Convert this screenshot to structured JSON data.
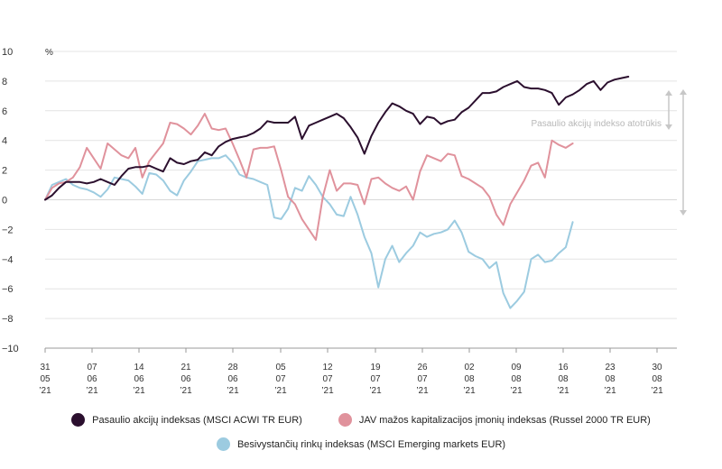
{
  "chart_data": {
    "type": "line",
    "ylabel": "%",
    "ylim": [
      -10,
      10
    ],
    "yticks": [
      "10",
      "8",
      "6",
      "4",
      "2",
      "0",
      "−2",
      "−4",
      "−6",
      "−8",
      "−10"
    ],
    "xticks": [
      {
        "day": "31",
        "month": "05",
        "year": "’21"
      },
      {
        "day": "07",
        "month": "06",
        "year": "’21"
      },
      {
        "day": "14",
        "month": "06",
        "year": "’21"
      },
      {
        "day": "21",
        "month": "06",
        "year": "’21"
      },
      {
        "day": "28",
        "month": "06",
        "year": "’21"
      },
      {
        "day": "05",
        "month": "07",
        "year": "’21"
      },
      {
        "day": "12",
        "month": "07",
        "year": "’21"
      },
      {
        "day": "19",
        "month": "07",
        "year": "’21"
      },
      {
        "day": "26",
        "month": "07",
        "year": "’21"
      },
      {
        "day": "02",
        "month": "08",
        "year": "’21"
      },
      {
        "day": "09",
        "month": "08",
        "year": "’21"
      },
      {
        "day": "16",
        "month": "08",
        "year": "’21"
      },
      {
        "day": "23",
        "month": "08",
        "year": "’21"
      },
      {
        "day": "30",
        "month": "08",
        "year": "’21"
      }
    ],
    "grid": true,
    "legend": "bottom",
    "annotation": "Pasaulio akcijų indekso atotrūkis",
    "series": [
      {
        "name": "Pasaulio akcijų indeksas (MSCI ACWI TR EUR)",
        "color": "#2b0f2e",
        "points": [
          [
            0,
            0
          ],
          [
            1,
            0.3
          ],
          [
            2,
            0.8
          ],
          [
            3,
            1.2
          ],
          [
            4,
            1.2
          ],
          [
            5,
            1.2
          ],
          [
            6,
            1.1
          ],
          [
            7,
            1.2
          ],
          [
            8,
            1.4
          ],
          [
            9,
            1.2
          ],
          [
            10,
            1.0
          ],
          [
            11,
            1.6
          ],
          [
            12,
            2.1
          ],
          [
            13,
            2.2
          ],
          [
            14,
            2.2
          ],
          [
            15,
            2.3
          ],
          [
            16,
            2.1
          ],
          [
            17,
            1.9
          ],
          [
            18,
            2.8
          ],
          [
            19,
            2.5
          ],
          [
            20,
            2.4
          ],
          [
            21,
            2.6
          ],
          [
            22,
            2.7
          ],
          [
            23,
            3.2
          ],
          [
            24,
            3.0
          ],
          [
            25,
            3.6
          ],
          [
            26,
            3.9
          ],
          [
            27,
            4.1
          ],
          [
            28,
            4.2
          ],
          [
            29,
            4.3
          ],
          [
            30,
            4.5
          ],
          [
            31,
            4.8
          ],
          [
            32,
            5.3
          ],
          [
            33,
            5.2
          ],
          [
            34,
            5.2
          ],
          [
            35,
            5.2
          ],
          [
            36,
            5.6
          ],
          [
            37,
            4.1
          ],
          [
            38,
            5.0
          ],
          [
            39,
            5.2
          ],
          [
            40,
            5.4
          ],
          [
            41,
            5.6
          ],
          [
            42,
            5.8
          ],
          [
            43,
            5.5
          ],
          [
            44,
            4.9
          ],
          [
            45,
            4.2
          ],
          [
            46,
            3.1
          ],
          [
            47,
            4.3
          ],
          [
            48,
            5.2
          ],
          [
            49,
            5.9
          ],
          [
            50,
            6.5
          ],
          [
            51,
            6.3
          ],
          [
            52,
            6.0
          ],
          [
            53,
            5.8
          ],
          [
            54,
            5.1
          ],
          [
            55,
            5.6
          ],
          [
            56,
            5.5
          ],
          [
            57,
            5.1
          ],
          [
            58,
            5.3
          ],
          [
            59,
            5.4
          ],
          [
            60,
            5.9
          ],
          [
            61,
            6.2
          ],
          [
            62,
            6.7
          ],
          [
            63,
            7.2
          ],
          [
            64,
            7.2
          ],
          [
            65,
            7.3
          ],
          [
            66,
            7.6
          ],
          [
            67,
            7.8
          ],
          [
            68,
            8.0
          ],
          [
            69,
            7.6
          ],
          [
            70,
            7.5
          ],
          [
            71,
            7.5
          ],
          [
            72,
            7.4
          ],
          [
            73,
            7.2
          ],
          [
            74,
            6.4
          ],
          [
            75,
            6.9
          ],
          [
            76,
            7.1
          ],
          [
            77,
            7.4
          ],
          [
            78,
            7.8
          ],
          [
            79,
            8.0
          ],
          [
            80,
            7.4
          ],
          [
            81,
            7.9
          ],
          [
            82,
            8.1
          ],
          [
            83,
            8.2
          ],
          [
            84,
            8.3
          ]
        ]
      },
      {
        "name": "JAV mažos kapitalizacijos įmonių indeksas (Russel 2000 TR EUR)",
        "color": "#e0929c",
        "points": [
          [
            0,
            0
          ],
          [
            1,
            0.8
          ],
          [
            2,
            1.1
          ],
          [
            3,
            1.2
          ],
          [
            4,
            1.5
          ],
          [
            5,
            2.2
          ],
          [
            6,
            3.5
          ],
          [
            7,
            2.8
          ],
          [
            8,
            2.1
          ],
          [
            9,
            3.8
          ],
          [
            10,
            3.4
          ],
          [
            11,
            3.0
          ],
          [
            12,
            2.8
          ],
          [
            13,
            3.5
          ],
          [
            14,
            1.5
          ],
          [
            15,
            2.6
          ],
          [
            16,
            3.2
          ],
          [
            17,
            3.8
          ],
          [
            18,
            5.2
          ],
          [
            19,
            5.1
          ],
          [
            20,
            4.8
          ],
          [
            21,
            4.4
          ],
          [
            22,
            5.0
          ],
          [
            23,
            5.8
          ],
          [
            24,
            4.8
          ],
          [
            25,
            4.7
          ],
          [
            26,
            4.8
          ],
          [
            27,
            3.8
          ],
          [
            28,
            2.7
          ],
          [
            29,
            1.5
          ],
          [
            30,
            3.4
          ],
          [
            31,
            3.5
          ],
          [
            32,
            3.5
          ],
          [
            33,
            3.6
          ],
          [
            34,
            2.0
          ],
          [
            35,
            0.2
          ],
          [
            36,
            -0.3
          ],
          [
            37,
            -1.3
          ],
          [
            38,
            -2.0
          ],
          [
            39,
            -2.7
          ],
          [
            40,
            0.2
          ],
          [
            41,
            2.0
          ],
          [
            42,
            0.6
          ],
          [
            43,
            1.1
          ],
          [
            44,
            1.1
          ],
          [
            45,
            1.0
          ],
          [
            46,
            -0.3
          ],
          [
            47,
            1.4
          ],
          [
            48,
            1.5
          ],
          [
            49,
            1.1
          ],
          [
            50,
            0.8
          ],
          [
            51,
            0.6
          ],
          [
            52,
            0.9
          ],
          [
            53,
            0.0
          ],
          [
            54,
            1.9
          ],
          [
            55,
            3.0
          ],
          [
            56,
            2.8
          ],
          [
            57,
            2.6
          ],
          [
            58,
            3.1
          ],
          [
            59,
            3.0
          ],
          [
            60,
            1.6
          ],
          [
            61,
            1.4
          ],
          [
            62,
            1.1
          ],
          [
            63,
            0.8
          ],
          [
            64,
            0.2
          ],
          [
            65,
            -1.0
          ],
          [
            66,
            -1.7
          ],
          [
            67,
            -0.3
          ],
          [
            68,
            0.5
          ],
          [
            69,
            1.3
          ],
          [
            70,
            2.3
          ],
          [
            71,
            2.5
          ],
          [
            72,
            1.5
          ],
          [
            73,
            4.0
          ],
          [
            74,
            3.7
          ],
          [
            75,
            3.5
          ],
          [
            76,
            3.8
          ]
        ]
      },
      {
        "name": "Besivystančių rinkų indeksas (MSCI Emerging markets EUR)",
        "color": "#9ccbe0",
        "points": [
          [
            0,
            0
          ],
          [
            1,
            1.0
          ],
          [
            2,
            1.2
          ],
          [
            3,
            1.4
          ],
          [
            4,
            1.0
          ],
          [
            5,
            0.8
          ],
          [
            6,
            0.7
          ],
          [
            7,
            0.5
          ],
          [
            8,
            0.2
          ],
          [
            9,
            0.7
          ],
          [
            10,
            1.5
          ],
          [
            11,
            1.4
          ],
          [
            12,
            1.3
          ],
          [
            13,
            0.9
          ],
          [
            14,
            0.4
          ],
          [
            15,
            1.8
          ],
          [
            16,
            1.7
          ],
          [
            17,
            1.3
          ],
          [
            18,
            0.6
          ],
          [
            19,
            0.3
          ],
          [
            20,
            1.3
          ],
          [
            21,
            1.9
          ],
          [
            22,
            2.6
          ],
          [
            23,
            2.7
          ],
          [
            24,
            2.8
          ],
          [
            25,
            2.8
          ],
          [
            26,
            3.0
          ],
          [
            27,
            2.5
          ],
          [
            28,
            1.7
          ],
          [
            29,
            1.5
          ],
          [
            30,
            1.4
          ],
          [
            31,
            1.2
          ],
          [
            32,
            1.0
          ],
          [
            33,
            -1.2
          ],
          [
            34,
            -1.3
          ],
          [
            35,
            -0.6
          ],
          [
            36,
            0.8
          ],
          [
            37,
            0.6
          ],
          [
            38,
            1.6
          ],
          [
            39,
            1.0
          ],
          [
            40,
            0.2
          ],
          [
            41,
            -0.3
          ],
          [
            42,
            -1.0
          ],
          [
            43,
            -1.1
          ],
          [
            44,
            0.2
          ],
          [
            45,
            -1.0
          ],
          [
            46,
            -2.5
          ],
          [
            47,
            -3.6
          ],
          [
            48,
            -5.9
          ],
          [
            49,
            -4.0
          ],
          [
            50,
            -3.1
          ],
          [
            51,
            -4.2
          ],
          [
            52,
            -3.6
          ],
          [
            53,
            -3.1
          ],
          [
            54,
            -2.2
          ],
          [
            55,
            -2.5
          ],
          [
            56,
            -2.3
          ],
          [
            57,
            -2.2
          ],
          [
            58,
            -2.0
          ],
          [
            59,
            -1.4
          ],
          [
            60,
            -2.2
          ],
          [
            61,
            -3.5
          ],
          [
            62,
            -3.8
          ],
          [
            63,
            -4.0
          ],
          [
            64,
            -4.6
          ],
          [
            65,
            -4.2
          ],
          [
            66,
            -6.3
          ],
          [
            67,
            -7.3
          ],
          [
            68,
            -6.8
          ],
          [
            69,
            -6.2
          ],
          [
            70,
            -4.0
          ],
          [
            71,
            -3.7
          ],
          [
            72,
            -4.2
          ],
          [
            73,
            -4.1
          ],
          [
            74,
            -3.6
          ],
          [
            75,
            -3.2
          ],
          [
            76,
            -1.5
          ]
        ]
      }
    ]
  }
}
